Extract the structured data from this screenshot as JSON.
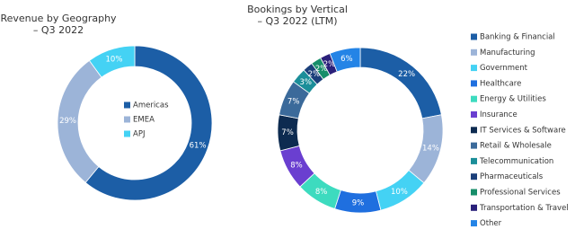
{
  "chart_data": [
    {
      "type": "donut",
      "title": "Revenue by Geography – Q3 2022",
      "categories": [
        "Americas",
        "EMEA",
        "APJ"
      ],
      "values": [
        61,
        29,
        10
      ],
      "value_labels": [
        "61%",
        "29%",
        "10%"
      ],
      "colors": [
        "#1c5ea6",
        "#9cb4d8",
        "#44d2f4"
      ],
      "legend": "center"
    },
    {
      "type": "donut",
      "title": "Bookings by Vertical – Q3 2022 (LTM)",
      "categories": [
        "Banking & Financial",
        "Manufacturing",
        "Government",
        "Healthcare",
        "Energy & Utilities",
        "Insurance",
        "IT Services & Software",
        "Retail & Wholesale",
        "Telecommunication",
        "Pharmaceuticals",
        "Professional Services",
        "Transportation & Travel",
        "Other"
      ],
      "values": [
        22,
        14,
        10,
        9,
        8,
        8,
        7,
        7,
        3,
        2,
        2,
        2,
        6
      ],
      "value_labels": [
        "22%",
        "14%",
        "10%",
        "9%",
        "8%",
        "8%",
        "7%",
        "7%",
        "3%",
        "2%",
        "2%",
        "2%",
        "6%"
      ],
      "colors": [
        "#1c5ea6",
        "#9cb4d8",
        "#44d2f4",
        "#1f6fdf",
        "#3ddbbf",
        "#6a3fd0",
        "#0d2b50",
        "#3b6a9a",
        "#1b8e99",
        "#1b3f7a",
        "#178e6a",
        "#2a207a",
        "#2484e6"
      ],
      "legend": "right"
    }
  ]
}
